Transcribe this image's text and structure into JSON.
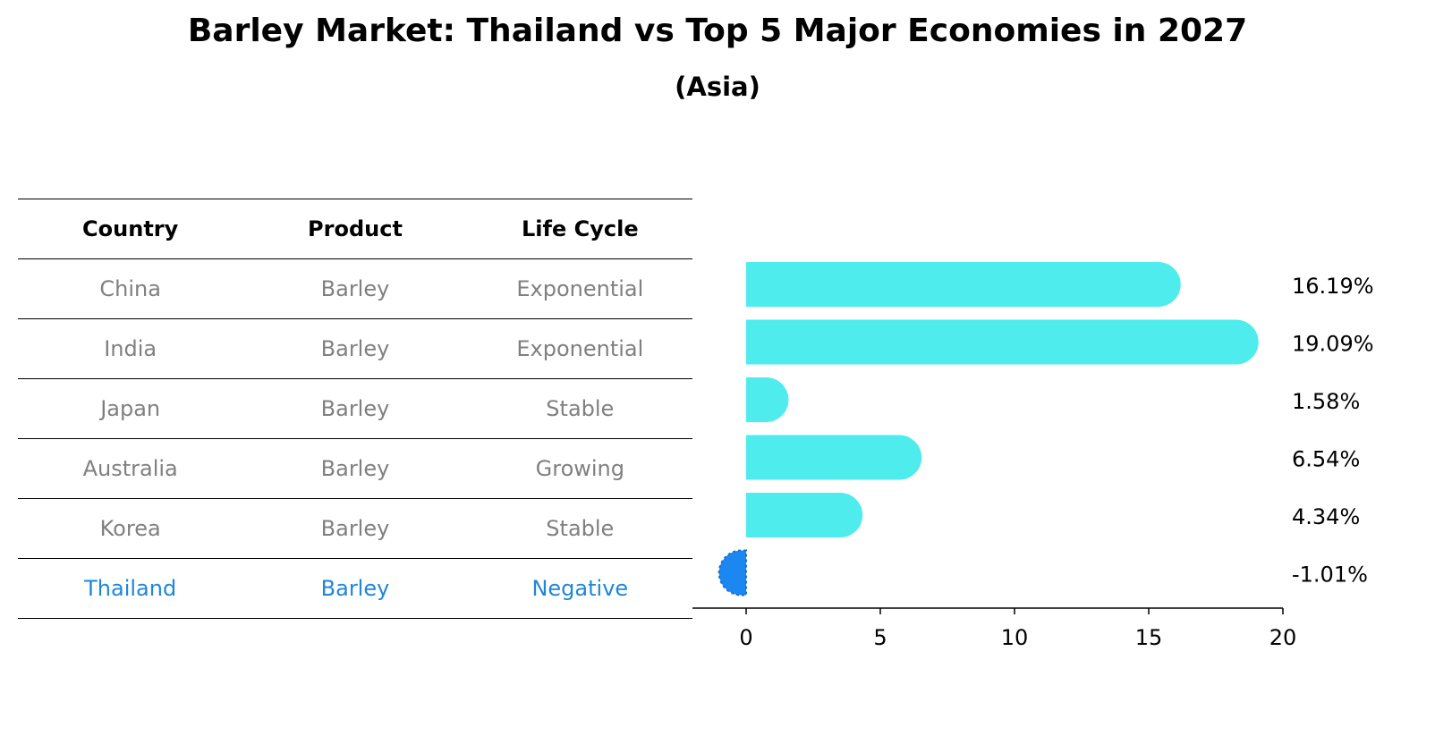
{
  "title": "Barley Market: Thailand vs Top 5 Major Economies in 2027",
  "subtitle": "(Asia)",
  "table": {
    "headers": [
      "Country",
      "Product",
      "Life Cycle"
    ],
    "rows": [
      [
        "China",
        "Barley",
        "Exponential"
      ],
      [
        "India",
        "Barley",
        "Exponential"
      ],
      [
        "Japan",
        "Barley",
        "Stable"
      ],
      [
        "Australia",
        "Barley",
        "Growing"
      ],
      [
        "Korea",
        "Barley",
        "Stable"
      ],
      [
        "Thailand",
        "Barley",
        "Negative"
      ]
    ]
  },
  "chart_data": {
    "type": "bar",
    "orientation": "horizontal",
    "categories": [
      "China",
      "India",
      "Japan",
      "Australia",
      "Korea",
      "Thailand"
    ],
    "values": [
      16.19,
      19.09,
      1.58,
      6.54,
      4.34,
      -1.01
    ],
    "labels": [
      "16.19%",
      "19.09%",
      "1.58%",
      "6.54%",
      "4.34%",
      "-1.01%"
    ],
    "xlim": [
      -2,
      20
    ],
    "xticks": [
      0,
      5,
      10,
      15,
      20
    ],
    "xlabel": "",
    "ylabel": "",
    "colors": {
      "positive": "#4eecec",
      "negative": "#1b87f0"
    }
  }
}
